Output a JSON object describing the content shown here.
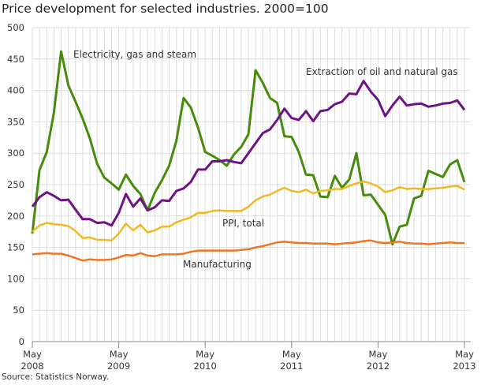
{
  "chart_data": {
    "type": "line",
    "title": "Price development for selected industries. 2000=100",
    "source": "Source: Statistics Norway.",
    "xlabel": "",
    "ylabel": "",
    "ylim": [
      0,
      500
    ],
    "yticks": [
      "0",
      "50",
      "100",
      "150",
      "200",
      "250",
      "300",
      "350",
      "400",
      "450",
      "500"
    ],
    "xticks": [
      {
        "month": "May",
        "year": "2008",
        "index": 0
      },
      {
        "month": "May",
        "year": "2009",
        "index": 12
      },
      {
        "month": "May",
        "year": "2010",
        "index": 24
      },
      {
        "month": "May",
        "year": "2011",
        "index": 36
      },
      {
        "month": "May",
        "year": "2012",
        "index": 48
      },
      {
        "month": "May",
        "year": "2013",
        "index": 60
      }
    ],
    "x_range": [
      "2008-05",
      "2013-05"
    ],
    "frequency": "monthly",
    "grid": "vertical monthly and horizontal gridlines",
    "series": [
      {
        "name": "Electricity, gas and steam",
        "color": "#468c0a",
        "values": [
          172,
          273,
          302,
          365,
          462,
          408,
          382,
          355,
          323,
          283,
          261,
          252,
          242,
          266,
          248,
          235,
          209,
          237,
          257,
          280,
          320,
          388,
          373,
          341,
          302,
          296,
          289,
          280,
          298,
          310,
          330,
          432,
          412,
          388,
          380,
          327,
          326,
          302,
          266,
          265,
          231,
          230,
          264,
          245,
          258,
          300,
          233,
          234,
          218,
          202,
          155,
          183,
          186,
          228,
          232,
          272,
          267,
          262,
          282,
          289,
          254
        ]
      },
      {
        "name": "Extraction of oil and natural gas",
        "color": "#6e1386",
        "values": [
          215,
          230,
          238,
          232,
          225,
          226,
          210,
          195,
          195,
          189,
          190,
          185,
          205,
          235,
          215,
          228,
          209,
          214,
          225,
          224,
          240,
          244,
          254,
          274,
          274,
          287,
          287,
          289,
          286,
          284,
          300,
          316,
          332,
          338,
          353,
          371,
          356,
          353,
          367,
          351,
          367,
          369,
          378,
          382,
          395,
          394,
          415,
          398,
          385,
          359,
          376,
          390,
          376,
          378,
          379,
          374,
          376,
          379,
          380,
          384,
          369
        ]
      },
      {
        "name": "PPI, total",
        "color": "#f0b923",
        "values": [
          175,
          185,
          189,
          187,
          186,
          184,
          176,
          165,
          166,
          162,
          162,
          161,
          172,
          188,
          177,
          186,
          174,
          177,
          183,
          183,
          190,
          194,
          198,
          205,
          205,
          208,
          209,
          208,
          208,
          208,
          215,
          225,
          231,
          234,
          240,
          245,
          240,
          238,
          242,
          236,
          240,
          241,
          243,
          243,
          248,
          252,
          255,
          252,
          247,
          238,
          241,
          246,
          243,
          244,
          243,
          243,
          244,
          245,
          247,
          248,
          242
        ]
      },
      {
        "name": "Manufacturing",
        "color": "#ee7623",
        "values": [
          139,
          140,
          141,
          140,
          140,
          137,
          133,
          129,
          131,
          130,
          130,
          131,
          134,
          138,
          137,
          141,
          137,
          136,
          139,
          139,
          139,
          140,
          143,
          145,
          145,
          145,
          145,
          145,
          145,
          146,
          147,
          150,
          152,
          155,
          158,
          159,
          158,
          157,
          157,
          156,
          156,
          156,
          155,
          156,
          157,
          158,
          160,
          161,
          158,
          157,
          158,
          159,
          157,
          156,
          156,
          155,
          156,
          157,
          158,
          157,
          157
        ]
      }
    ]
  }
}
